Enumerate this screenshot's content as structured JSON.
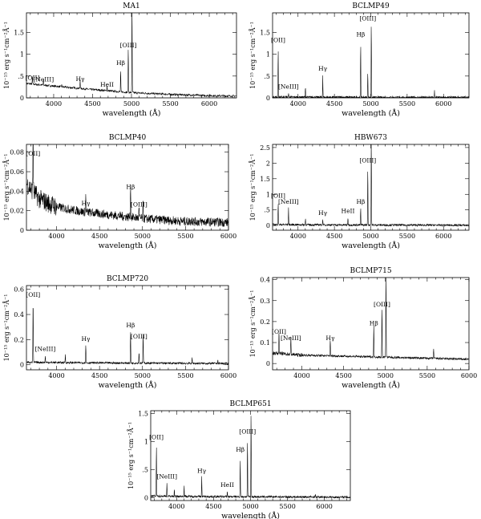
{
  "figure": {
    "ylabel": "10⁻¹⁵ erg s⁻¹cm⁻²Å⁻¹",
    "xlabel": "wavelength (Å)"
  },
  "chart_data": [
    {
      "type": "line",
      "title": "MA1",
      "xlabel": "wavelength (Å)",
      "ylabel": "10⁻¹⁵ erg s⁻¹cm⁻²Å⁻¹",
      "xlim": [
        3650,
        6350
      ],
      "ylim": [
        0,
        1.95
      ],
      "xticks": [
        4000,
        4500,
        5000,
        5500,
        6000
      ],
      "yticks": [
        0,
        0.5,
        1,
        1.5
      ],
      "ytick_labels": [
        "0",
        ".5",
        "1",
        "1.5"
      ],
      "continuum": [
        [
          3650,
          0.33
        ],
        [
          4000,
          0.27
        ],
        [
          4500,
          0.19
        ],
        [
          5000,
          0.12
        ],
        [
          5500,
          0.08
        ],
        [
          6000,
          0.05
        ],
        [
          6350,
          0.04
        ]
      ],
      "lines": [
        [
          3727,
          0.18
        ],
        [
          3869,
          0.15
        ],
        [
          4102,
          0.05
        ],
        [
          4340,
          0.22
        ],
        [
          4686,
          0.12
        ],
        [
          4861,
          0.5
        ],
        [
          4959,
          1.05
        ],
        [
          5007,
          2.2
        ]
      ],
      "annotations": [
        {
          "text": "[OII]",
          "wavelength": 3727,
          "y": 0.36
        },
        {
          "text": "[NeIII]",
          "wavelength": 3869,
          "y": 0.32
        },
        {
          "text": "Hγ",
          "wavelength": 4340,
          "y": 0.33
        },
        {
          "text": "HeII",
          "wavelength": 4686,
          "y": 0.2
        },
        {
          "text": "Hβ",
          "wavelength": 4861,
          "y": 0.7
        },
        {
          "text": "[OIII]",
          "wavelength": 4959,
          "y": 1.1
        }
      ]
    },
    {
      "type": "line",
      "title": "BCLMP49",
      "xlabel": "wavelength (Å)",
      "ylabel": "10⁻¹⁵ erg s⁻¹cm⁻²Å⁻¹",
      "xlim": [
        3650,
        6350
      ],
      "ylim": [
        0,
        1.95
      ],
      "xticks": [
        4000,
        4500,
        5000,
        5500,
        6000
      ],
      "yticks": [
        0,
        0.5,
        1,
        1.5
      ],
      "ytick_labels": [
        "0",
        ".5",
        "1",
        "1.5"
      ],
      "continuum": [
        [
          3650,
          0.02
        ],
        [
          4500,
          0.015
        ],
        [
          5500,
          0.01
        ],
        [
          6350,
          0.01
        ]
      ],
      "lines": [
        [
          3727,
          1.15
        ],
        [
          3869,
          0.1
        ],
        [
          4102,
          0.25
        ],
        [
          4340,
          0.5
        ],
        [
          4861,
          1.28
        ],
        [
          4959,
          0.6
        ],
        [
          5007,
          1.8
        ],
        [
          5876,
          0.15
        ]
      ],
      "annotations": [
        {
          "text": "[OII]",
          "wavelength": 3727,
          "y": 1.22
        },
        {
          "text": "[NeIII]",
          "wavelength": 3869,
          "y": 0.16
        },
        {
          "text": "Hγ",
          "wavelength": 4340,
          "y": 0.57
        },
        {
          "text": "Hβ",
          "wavelength": 4861,
          "y": 1.35
        },
        {
          "text": "[OIII]",
          "wavelength": 4959,
          "y": 1.72
        }
      ]
    },
    {
      "type": "line",
      "title": "BCLMP40",
      "xlabel": "wavelength (Å)",
      "ylabel": "10⁻¹⁵ erg s⁻¹cm⁻²Å⁻¹",
      "xlim": [
        3650,
        6000
      ],
      "ylim": [
        0,
        0.088
      ],
      "xticks": [
        4000,
        4500,
        5000,
        5500,
        6000
      ],
      "yticks": [
        0,
        0.02,
        0.04,
        0.06,
        0.08
      ],
      "ytick_labels": [
        "0",
        "0.02",
        "0.04",
        "0.06",
        "0.08"
      ],
      "continuum": [
        [
          3650,
          0.048
        ],
        [
          3800,
          0.032
        ],
        [
          4000,
          0.024
        ],
        [
          4300,
          0.019
        ],
        [
          4600,
          0.016
        ],
        [
          5000,
          0.012
        ],
        [
          5500,
          0.009
        ],
        [
          6000,
          0.008
        ]
      ],
      "lines": [
        [
          3727,
          0.072
        ],
        [
          4340,
          0.018
        ],
        [
          4861,
          0.036
        ],
        [
          4959,
          0.012
        ],
        [
          5007,
          0.018
        ],
        [
          5577,
          0.008
        ]
      ],
      "annotations": [
        {
          "text": "[OII]",
          "wavelength": 3727,
          "y": 0.074
        },
        {
          "text": "Hγ",
          "wavelength": 4340,
          "y": 0.023
        },
        {
          "text": "Hβ",
          "wavelength": 4861,
          "y": 0.04
        },
        {
          "text": "[OIII]",
          "wavelength": 4959,
          "y": 0.022
        }
      ]
    },
    {
      "type": "line",
      "title": "HBW673",
      "xlabel": "wavelength (Å)",
      "ylabel": "10⁻¹⁵ erg s⁻¹cm⁻²Å⁻¹",
      "xlim": [
        3650,
        6350
      ],
      "ylim": [
        -0.15,
        2.6
      ],
      "xticks": [
        4000,
        4500,
        5000,
        5500,
        6000
      ],
      "yticks": [
        0,
        0.5,
        1,
        1.5,
        2,
        2.5
      ],
      "ytick_labels": [
        "0",
        ".5",
        "1",
        "1.5",
        "2",
        "2.5"
      ],
      "continuum": [
        [
          3650,
          0.03
        ],
        [
          4500,
          0.02
        ],
        [
          5500,
          0.015
        ],
        [
          6350,
          0.01
        ]
      ],
      "lines": [
        [
          3727,
          0.75
        ],
        [
          3869,
          0.55
        ],
        [
          4102,
          0.2
        ],
        [
          4340,
          0.2
        ],
        [
          4686,
          0.25
        ],
        [
          4861,
          0.55
        ],
        [
          4959,
          1.9
        ],
        [
          5007,
          3.0
        ]
      ],
      "annotations": [
        {
          "text": "[OII]",
          "wavelength": 3727,
          "y": 0.82
        },
        {
          "text": "[NeIII]",
          "wavelength": 3869,
          "y": 0.62
        },
        {
          "text": "Hγ",
          "wavelength": 4340,
          "y": 0.26
        },
        {
          "text": "HeII",
          "wavelength": 4686,
          "y": 0.33
        },
        {
          "text": "Hβ",
          "wavelength": 4861,
          "y": 0.62
        },
        {
          "text": "[OIII]",
          "wavelength": 4959,
          "y": 1.95
        }
      ]
    },
    {
      "type": "line",
      "title": "BCLMP720",
      "xlabel": "wavelength (Å)",
      "ylabel": "10⁻¹⁵ erg s⁻¹cm⁻²Å⁻¹",
      "xlim": [
        3650,
        6000
      ],
      "ylim": [
        -0.04,
        0.63
      ],
      "xticks": [
        4000,
        4500,
        5000,
        5500,
        6000
      ],
      "yticks": [
        0,
        0.2,
        0.4,
        0.6
      ],
      "ytick_labels": [
        "0",
        "0.2",
        "0.4",
        "0.6"
      ],
      "continuum": [
        [
          3650,
          0.02
        ],
        [
          4500,
          0.015
        ],
        [
          6000,
          0.01
        ]
      ],
      "lines": [
        [
          3727,
          0.5
        ],
        [
          3869,
          0.05
        ],
        [
          4102,
          0.06
        ],
        [
          4340,
          0.14
        ],
        [
          4861,
          0.25
        ],
        [
          4959,
          0.09
        ],
        [
          5007,
          0.24
        ],
        [
          5577,
          0.04
        ],
        [
          5876,
          0.03
        ]
      ],
      "annotations": [
        {
          "text": "[OII]",
          "wavelength": 3727,
          "y": 0.52
        },
        {
          "text": "[NeIII]",
          "wavelength": 3869,
          "y": 0.09
        },
        {
          "text": "Hγ",
          "wavelength": 4340,
          "y": 0.17
        },
        {
          "text": "Hβ",
          "wavelength": 4861,
          "y": 0.28
        },
        {
          "text": "[OIII]",
          "wavelength": 4959,
          "y": 0.19
        }
      ]
    },
    {
      "type": "line",
      "title": "BCLMP715",
      "xlabel": "wavelength (Å)",
      "ylabel": "10⁻¹⁵ erg s⁻¹cm⁻²Å⁻¹",
      "xlim": [
        3650,
        6000
      ],
      "ylim": [
        -0.03,
        0.41
      ],
      "xticks": [
        4000,
        4500,
        5000,
        5500,
        6000
      ],
      "yticks": [
        0,
        0.1,
        0.2,
        0.3,
        0.4
      ],
      "ytick_labels": [
        "0",
        "0.1",
        "0.2",
        "0.3",
        "0.4"
      ],
      "continuum": [
        [
          3650,
          0.05
        ],
        [
          4000,
          0.04
        ],
        [
          4500,
          0.035
        ],
        [
          5000,
          0.03
        ],
        [
          5500,
          0.025
        ],
        [
          6000,
          0.02
        ]
      ],
      "lines": [
        [
          3727,
          0.11
        ],
        [
          3869,
          0.08
        ],
        [
          4340,
          0.08
        ],
        [
          4861,
          0.15
        ],
        [
          4959,
          0.24
        ],
        [
          5007,
          0.42
        ],
        [
          5577,
          0.05
        ]
      ],
      "annotations": [
        {
          "text": "[OII]",
          "wavelength": 3727,
          "y": 0.13
        },
        {
          "text": "[NeIII]",
          "wavelength": 3869,
          "y": 0.1
        },
        {
          "text": "Hγ",
          "wavelength": 4340,
          "y": 0.1
        },
        {
          "text": "Hβ",
          "wavelength": 4861,
          "y": 0.17
        },
        {
          "text": "[OIII]",
          "wavelength": 4959,
          "y": 0.26
        }
      ]
    },
    {
      "type": "line",
      "title": "BCLMP651",
      "xlabel": "wavelength (Å)",
      "ylabel": "10⁻¹⁵ erg s⁻¹cm⁻²Å⁻¹",
      "xlim": [
        3650,
        6350
      ],
      "ylim": [
        -0.05,
        1.55
      ],
      "xticks": [
        4000,
        4500,
        5000,
        5500,
        6000
      ],
      "yticks": [
        0,
        0.5,
        1,
        1.5
      ],
      "ytick_labels": [
        "0",
        ".5",
        "1",
        "1.5"
      ],
      "continuum": [
        [
          3650,
          0.03
        ],
        [
          4500,
          0.02
        ],
        [
          5500,
          0.015
        ],
        [
          6350,
          0.01
        ]
      ],
      "lines": [
        [
          3727,
          0.95
        ],
        [
          3869,
          0.25
        ],
        [
          3969,
          0.12
        ],
        [
          4102,
          0.2
        ],
        [
          4340,
          0.35
        ],
        [
          4686,
          0.1
        ],
        [
          4861,
          0.72
        ],
        [
          4959,
          1.05
        ],
        [
          5007,
          1.6
        ],
        [
          5876,
          0.06
        ]
      ],
      "annotations": [
        {
          "text": "[OII]",
          "wavelength": 3727,
          "y": 1.0
        },
        {
          "text": "[NeIII]",
          "wavelength": 3869,
          "y": 0.3
        },
        {
          "text": "Hγ",
          "wavelength": 4340,
          "y": 0.4
        },
        {
          "text": "HeII",
          "wavelength": 4686,
          "y": 0.15
        },
        {
          "text": "Hβ",
          "wavelength": 4861,
          "y": 0.78
        },
        {
          "text": "[OIII]",
          "wavelength": 4959,
          "y": 1.1
        }
      ]
    }
  ]
}
